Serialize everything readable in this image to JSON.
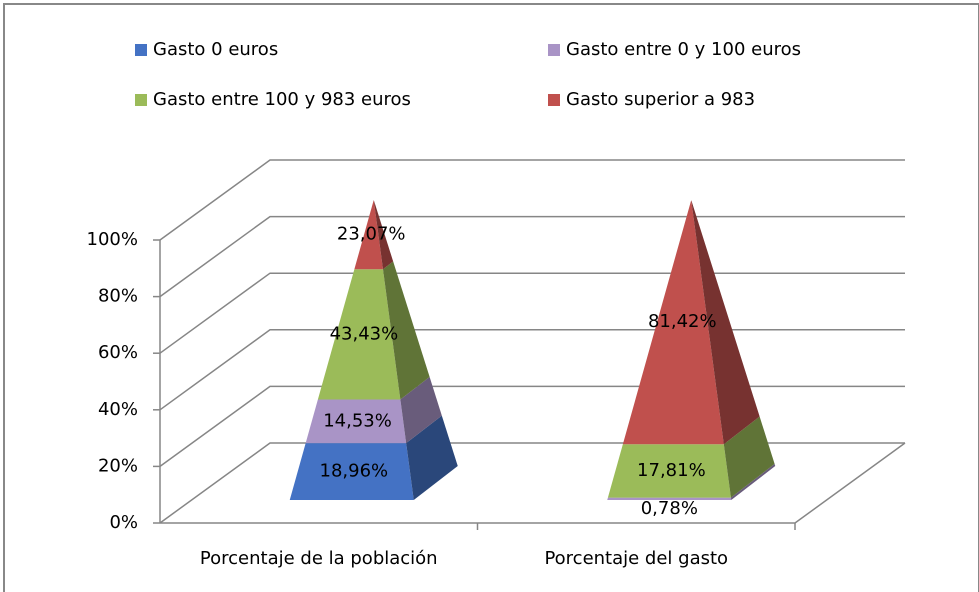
{
  "chart_data": {
    "type": "pyramid3d",
    "categories": [
      "Porcentaje de la población",
      "Porcentaje del gasto"
    ],
    "series": [
      {
        "name": "Gasto 0 euros",
        "color": "#4472c4",
        "values": [
          18.96,
          0
        ],
        "value_labels": [
          "18,96%",
          null
        ]
      },
      {
        "name": "Gasto entre 0 y 100 euros",
        "color": "#a994c6",
        "values": [
          14.53,
          0.78
        ],
        "value_labels": [
          "14,53%",
          "0,78%"
        ]
      },
      {
        "name": "Gasto entre 100 y 983 euros",
        "color": "#9bbb59",
        "values": [
          43.43,
          17.81
        ],
        "value_labels": [
          "43,43%",
          "17,81%"
        ]
      },
      {
        "name": "Gasto superior a 983",
        "color": "#c0504d",
        "values": [
          23.07,
          81.42
        ],
        "value_labels": [
          "23,07%",
          "81,42%"
        ]
      }
    ],
    "ylim": [
      0,
      100
    ],
    "yticks": [
      {
        "value": 0,
        "label": "0%"
      },
      {
        "value": 20,
        "label": "20%"
      },
      {
        "value": 40,
        "label": "40%"
      },
      {
        "value": 60,
        "label": "60%"
      },
      {
        "value": 80,
        "label": "80%"
      },
      {
        "value": 100,
        "label": "100%"
      }
    ],
    "grid": true
  }
}
